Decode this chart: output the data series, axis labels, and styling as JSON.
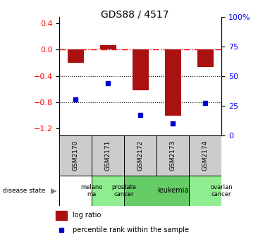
{
  "title": "GDS88 / 4517",
  "samples": [
    "GSM2170",
    "GSM2171",
    "GSM2172",
    "GSM2173",
    "GSM2174"
  ],
  "log_ratio": [
    -0.2,
    0.07,
    -0.62,
    -1.0,
    -0.27
  ],
  "percentile": [
    30,
    44,
    17,
    10,
    27
  ],
  "disease_groups": [
    {
      "label": "melano\nma",
      "span": [
        0,
        1
      ],
      "color": "#ffffff"
    },
    {
      "label": "prostate\ncancer",
      "span": [
        1,
        2
      ],
      "color": "#90ee90"
    },
    {
      "label": "leukemia",
      "span": [
        2,
        4
      ],
      "color": "#66cc66"
    },
    {
      "label": "ovarian\ncancer",
      "span": [
        4,
        5
      ],
      "color": "#90ee90"
    }
  ],
  "ylim_left": [
    -1.3,
    0.5
  ],
  "ylim_right": [
    0,
    100
  ],
  "yticks_left": [
    0.4,
    0.0,
    -0.4,
    -0.8,
    -1.2
  ],
  "yticks_right": [
    100,
    75,
    50,
    25,
    0
  ],
  "bar_color": "#aa1111",
  "dot_color": "#0000cc",
  "bar_width": 0.5,
  "sample_box_color": "#cccccc",
  "fig_width": 3.83,
  "fig_height": 3.36
}
